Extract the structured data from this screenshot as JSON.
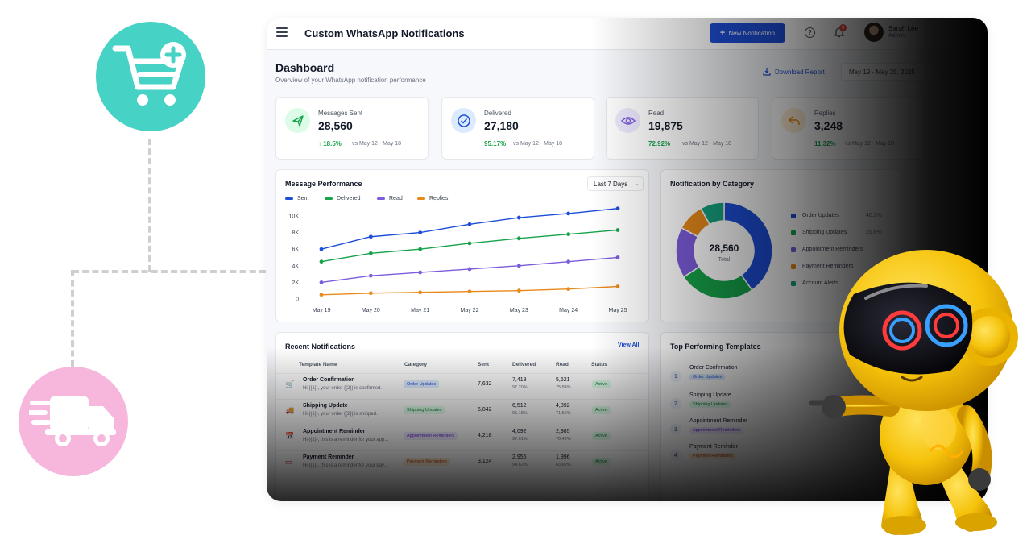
{
  "colors": {
    "accent": "#1d4ed8",
    "sent": "#1d4ed8",
    "delivered": "#16a34a",
    "read": "#7c5cdb",
    "replies": "#e88a1a",
    "teal_bubble": "#46d2c4",
    "pink_bubble": "#f7b7dd",
    "robot": "#f5c20a"
  },
  "header": {
    "title": "Custom WhatsApp Notifications",
    "new_button": "New Notification",
    "notification_count": "3",
    "user_name": "Sarah Lee",
    "user_role": "Admin"
  },
  "dashboard": {
    "title": "Dashboard",
    "subtitle": "Overview of your WhatsApp notification performance",
    "download": "Download Report",
    "date_range": "May 19 - May 25, 2025"
  },
  "stats": [
    {
      "label": "Messages Sent",
      "value": "28,560",
      "change": "↑ 18.5%",
      "compare": "vs May 12 - May 18",
      "icon": "send-icon"
    },
    {
      "label": "Delivered",
      "value": "27,180",
      "change": "95.17%",
      "compare": "vs May 12 - May 18",
      "icon": "check-circle-icon"
    },
    {
      "label": "Read",
      "value": "19,875",
      "change": "72.92%",
      "compare": "vs May 12 - May 18",
      "icon": "eye-icon"
    },
    {
      "label": "Replies",
      "value": "3,248",
      "change": "11.32%",
      "compare": "vs May 12 - May 18",
      "icon": "reply-icon"
    }
  ],
  "performance": {
    "title": "Message Performance",
    "period": "Last 7 Days"
  },
  "chart_data": [
    {
      "type": "line",
      "title": "Message Performance",
      "x": [
        "May 19",
        "May 20",
        "May 21",
        "May 22",
        "May 23",
        "May 24",
        "May 25"
      ],
      "ylim": [
        0,
        10000
      ],
      "yticks": [
        "0",
        "2K",
        "4K",
        "6K",
        "8K",
        "10K"
      ],
      "grid": false,
      "legend_position": "top-left",
      "series": [
        {
          "name": "Sent",
          "values": [
            6000,
            7500,
            8000,
            9000,
            9800,
            10300,
            10900
          ]
        },
        {
          "name": "Delivered",
          "values": [
            4500,
            5500,
            6000,
            6700,
            7300,
            7800,
            8300
          ]
        },
        {
          "name": "Read",
          "values": [
            2000,
            2800,
            3200,
            3600,
            4000,
            4500,
            5000
          ]
        },
        {
          "name": "Replies",
          "values": [
            500,
            700,
            800,
            900,
            1000,
            1200,
            1500
          ]
        }
      ]
    },
    {
      "type": "pie",
      "title": "Notification by Category",
      "center_value": "28,560",
      "center_label": "Total",
      "categories": [
        "Order Updates",
        "Shipping Updates",
        "Appointment Reminders",
        "Payment Reminders",
        "Account Alerts"
      ],
      "percents": [
        "40.2%",
        "25.6%",
        "",
        "",
        ""
      ],
      "values": [
        40.2,
        25.6,
        17.0,
        9.2,
        8.0
      ],
      "colors": [
        "#1d4ed8",
        "#16a34a",
        "#7c5cdb",
        "#e88a1a",
        "#15a37f"
      ]
    }
  ],
  "recent": {
    "title": "Recent Notifications",
    "view_all": "View All",
    "columns": [
      "Template Name",
      "Category",
      "Sent",
      "Delivered",
      "Read",
      "Status"
    ],
    "rows": [
      {
        "name": "Order Confirmation",
        "preview": "Hi {{1}}, your order {{2}} is confirmed.",
        "category": "Order Updates",
        "sent": "7,632",
        "delivered": "7,418",
        "delivered_pct": "97.20%",
        "read": "5,621",
        "read_pct": "75.84%",
        "status": "Active"
      },
      {
        "name": "Shipping Update",
        "preview": "Hi {{1}}, your order {{2}} is shipped.",
        "category": "Shipping Updates",
        "sent": "6,842",
        "delivered": "6,512",
        "delivered_pct": "95.18%",
        "read": "4,892",
        "read_pct": "71.55%",
        "status": "Active"
      },
      {
        "name": "Appointment Reminder",
        "preview": "Hi {{1}}, this is a reminder for your app...",
        "category": "Appointment Reminders",
        "sent": "4,218",
        "delivered": "4,092",
        "delivered_pct": "97.01%",
        "read": "2,985",
        "read_pct": "70.42%",
        "status": "Active"
      },
      {
        "name": "Payment Reminder",
        "preview": "Hi {{1}}, this is a reminder for your pay...",
        "category": "Payment Reminders",
        "sent": "3,124",
        "delivered": "2,956",
        "delivered_pct": "94.62%",
        "read": "1,996",
        "read_pct": "63.92%",
        "status": "Active"
      }
    ]
  },
  "top_templates": {
    "title": "Top Performing Templates",
    "items": [
      {
        "rank": "1",
        "name": "Order Confirmation",
        "tag": "Order Updates"
      },
      {
        "rank": "2",
        "name": "Shipping Update",
        "tag": "Shipping Updates"
      },
      {
        "rank": "3",
        "name": "Appointment Reminder",
        "tag": "Appointment Reminders"
      },
      {
        "rank": "4",
        "name": "Payment Reminder",
        "tag": "Payment Reminders"
      }
    ]
  }
}
